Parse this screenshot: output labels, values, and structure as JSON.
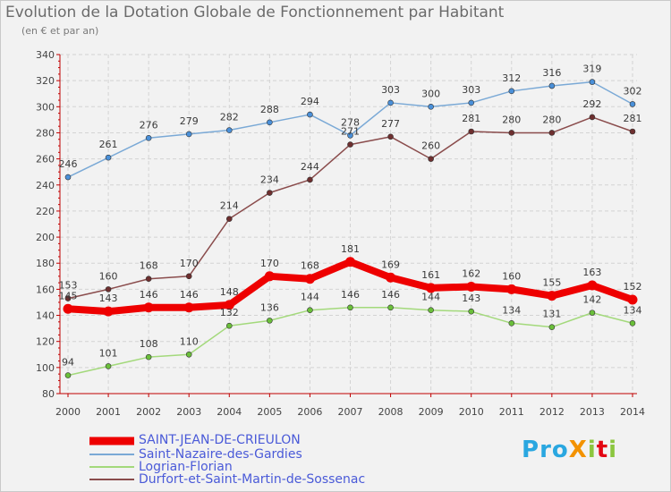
{
  "header": {
    "title": "Evolution de la Dotation Globale de Fonctionnement par Habitant",
    "subtitle": "(en € et par an)"
  },
  "logo": {
    "text": "ProXiti",
    "colors": [
      "#2aa7e0",
      "#f39200",
      "#8cc63f",
      "#e30613"
    ]
  },
  "chart_data": {
    "type": "line",
    "title": "Evolution de la Dotation Globale de Fonctionnement par Habitant",
    "subtitle": "(en € et par an)",
    "xlabel": "",
    "ylabel": "",
    "x": [
      "2000",
      "2001",
      "2002",
      "2003",
      "2004",
      "2005",
      "2006",
      "2007",
      "2008",
      "2009",
      "2010",
      "2011",
      "2012",
      "2013",
      "2014"
    ],
    "ylim": [
      80,
      340
    ],
    "yticks": [
      80,
      100,
      120,
      140,
      160,
      180,
      200,
      220,
      240,
      260,
      280,
      300,
      320,
      340
    ],
    "grid": true,
    "legend_position": "bottom-left",
    "series": [
      {
        "name": "SAINT-JEAN-DE-CRIEULON",
        "color": "#ee0000",
        "marker": "#ee0000",
        "emphasis": true,
        "values": [
          145,
          143,
          146,
          146,
          148,
          170,
          168,
          181,
          169,
          161,
          162,
          160,
          155,
          163,
          152
        ],
        "labels": [
          "145",
          "143",
          "146",
          "146",
          "148",
          "170",
          "168",
          "181",
          "169",
          "161",
          "162",
          "160",
          "155",
          "163",
          "152"
        ]
      },
      {
        "name": "Saint-Nazaire-des-Gardies",
        "color": "#7aa9d6",
        "marker": "#4a90d9",
        "emphasis": false,
        "values": [
          246,
          261,
          276,
          279,
          282,
          288,
          294,
          278,
          303,
          300,
          303,
          312,
          316,
          319,
          302
        ],
        "labels": [
          "246",
          "261",
          "276",
          "279",
          "282",
          "288",
          "294",
          "278",
          "303",
          "300",
          "303",
          "312",
          "316",
          "319",
          "302"
        ]
      },
      {
        "name": "Logrian-Florian",
        "color": "#a3d97b",
        "marker": "#6abf3a",
        "emphasis": false,
        "values": [
          94,
          101,
          108,
          110,
          132,
          136,
          144,
          146,
          146,
          144,
          143,
          134,
          131,
          142,
          134
        ],
        "labels": [
          "94",
          "101",
          "108",
          "110",
          "132",
          "136",
          "144",
          "146",
          "146",
          "144",
          "143",
          "134",
          "131",
          "142",
          "134"
        ]
      },
      {
        "name": "Durfort-et-Saint-Martin-de-Sossenac",
        "color": "#8a4c4c",
        "marker": "#6e2f2f",
        "emphasis": false,
        "values": [
          153,
          160,
          168,
          170,
          214,
          234,
          244,
          271,
          277,
          260,
          281,
          280,
          280,
          292,
          281
        ],
        "labels": [
          "153",
          "160",
          "168",
          "170",
          "214",
          "234",
          "244",
          "271",
          "277",
          "260",
          "281",
          "280",
          "280",
          "292",
          "281"
        ]
      }
    ]
  }
}
